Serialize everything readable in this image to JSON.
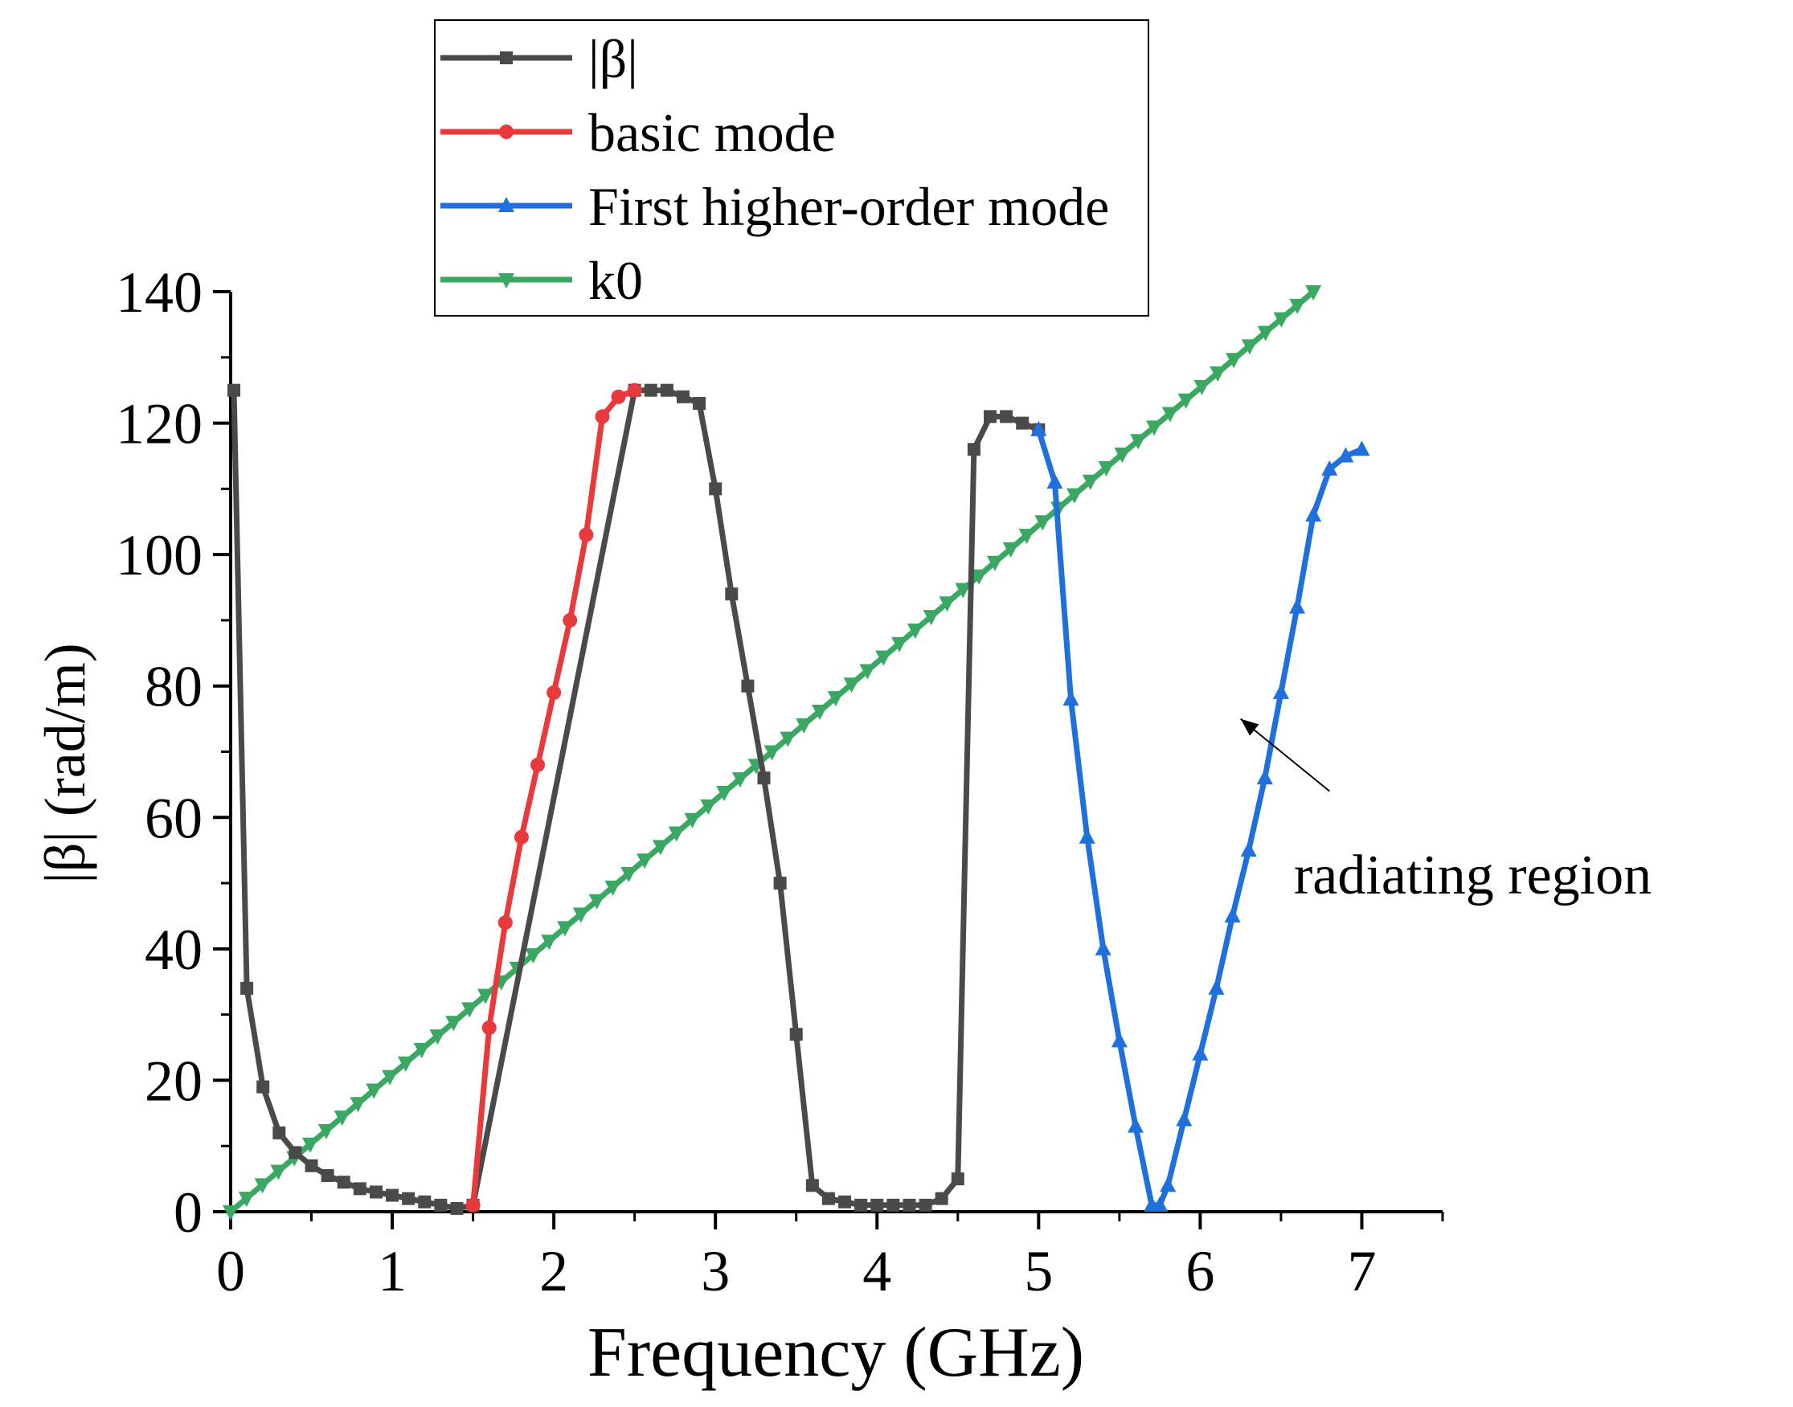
{
  "chart_data": {
    "type": "line",
    "title": "",
    "xlabel": "Frequency (GHz)",
    "ylabel": "|β| (rad/m)",
    "xlim": [
      0,
      7.5
    ],
    "ylim": [
      0,
      140
    ],
    "xticks": [
      0,
      1,
      2,
      3,
      4,
      5,
      6,
      7
    ],
    "yticks": [
      0,
      20,
      40,
      60,
      80,
      100,
      120,
      140
    ],
    "grid": false,
    "legend_position": "top",
    "annotation": {
      "text": "radiating region",
      "arrow_from": [
        6.8,
        64
      ],
      "arrow_to": [
        6.25,
        75
      ]
    },
    "series": [
      {
        "name": "|β|",
        "color": "#4a4a4a",
        "marker": "square",
        "x": [
          0.02,
          0.1,
          0.2,
          0.3,
          0.4,
          0.5,
          0.6,
          0.7,
          0.8,
          0.9,
          1.0,
          1.1,
          1.2,
          1.3,
          1.4,
          1.5,
          2.5,
          2.6,
          2.7,
          2.8,
          2.9,
          3.0,
          3.1,
          3.2,
          3.3,
          3.4,
          3.5,
          3.6,
          3.7,
          3.8,
          3.9,
          4.0,
          4.1,
          4.2,
          4.3,
          4.4,
          4.5,
          4.6,
          4.7,
          4.8,
          4.9,
          5.0
        ],
        "y": [
          125,
          34,
          19,
          12,
          9,
          7,
          5.5,
          4.5,
          3.5,
          3,
          2.5,
          2,
          1.5,
          1,
          0.5,
          1,
          125,
          125,
          125,
          124,
          123,
          110,
          94,
          80,
          66,
          50,
          27,
          4,
          2,
          1.5,
          1,
          1,
          1,
          1,
          1,
          2,
          5,
          116,
          121,
          121,
          120,
          119
        ]
      },
      {
        "name": "basic mode",
        "color": "#e8393c",
        "marker": "circle",
        "x": [
          1.5,
          1.6,
          1.7,
          1.8,
          1.9,
          2.0,
          2.1,
          2.2,
          2.3,
          2.4,
          2.5
        ],
        "y": [
          1,
          28,
          44,
          57,
          68,
          79,
          90,
          103,
          121,
          124,
          125
        ]
      },
      {
        "name": "First higher-order mode",
        "color": "#1f6fdc",
        "marker": "triangle-up",
        "x": [
          5.0,
          5.1,
          5.2,
          5.3,
          5.4,
          5.5,
          5.6,
          5.7,
          5.75,
          5.8,
          5.9,
          6.0,
          6.1,
          6.2,
          6.3,
          6.4,
          6.5,
          6.6,
          6.7,
          6.8,
          6.9,
          7.0
        ],
        "y": [
          119,
          111,
          78,
          57,
          40,
          26,
          13,
          1,
          1,
          4,
          14,
          24,
          34,
          45,
          55,
          66,
          79,
          92,
          106,
          113,
          115,
          116
        ]
      },
      {
        "name": "k0",
        "color": "#3aa862",
        "marker": "triangle-down",
        "x": [
          0,
          6.7
        ],
        "y": [
          0,
          140
        ],
        "marker_count": 68
      }
    ]
  }
}
